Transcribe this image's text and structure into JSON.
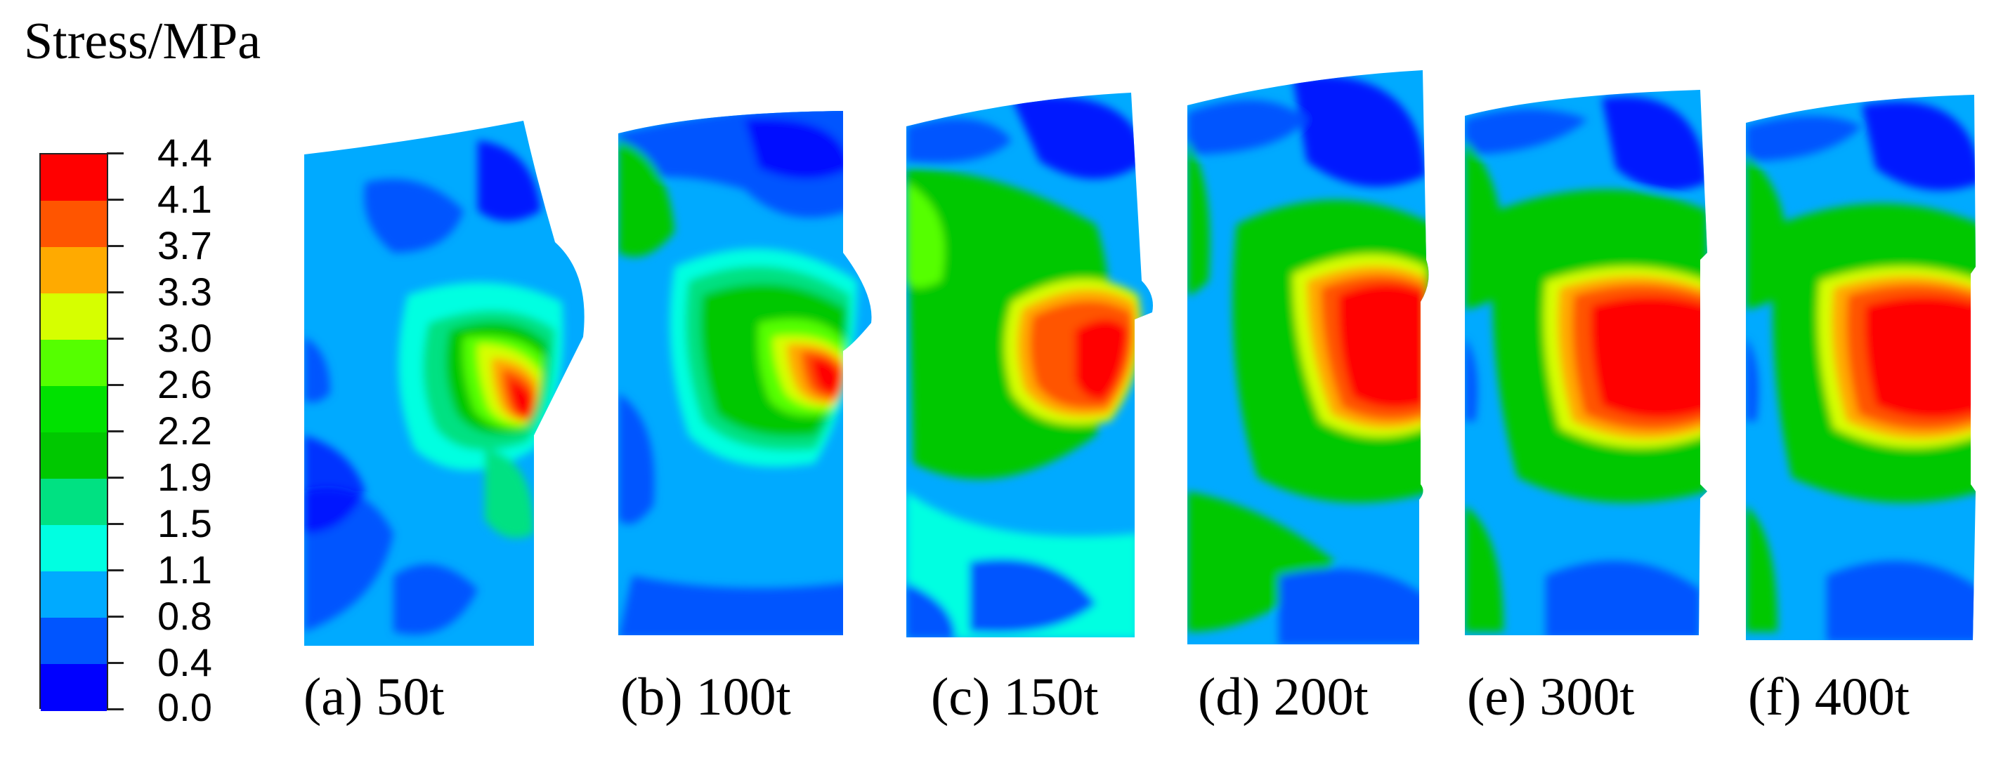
{
  "title": "Stress/MPa",
  "legend": {
    "labels": [
      "4.4",
      "4.1",
      "3.7",
      "3.3",
      "3.0",
      "2.6",
      "2.2",
      "1.9",
      "1.5",
      "1.1",
      "0.8",
      "0.4",
      "0.0"
    ],
    "colors": [
      "#ff0000",
      "#ff5500",
      "#ffaa00",
      "#d6ff00",
      "#55ff00",
      "#00e100",
      "#00c800",
      "#00e182",
      "#00ffe1",
      "#00aaff",
      "#0055ff",
      "#0000ff"
    ]
  },
  "panels": [
    {
      "caption": "(a) 50t"
    },
    {
      "caption": "(b) 100t"
    },
    {
      "caption": "(c) 150t"
    },
    {
      "caption": "(d) 200t"
    },
    {
      "caption": "(e) 300t"
    },
    {
      "caption": "(f) 400t"
    }
  ]
}
